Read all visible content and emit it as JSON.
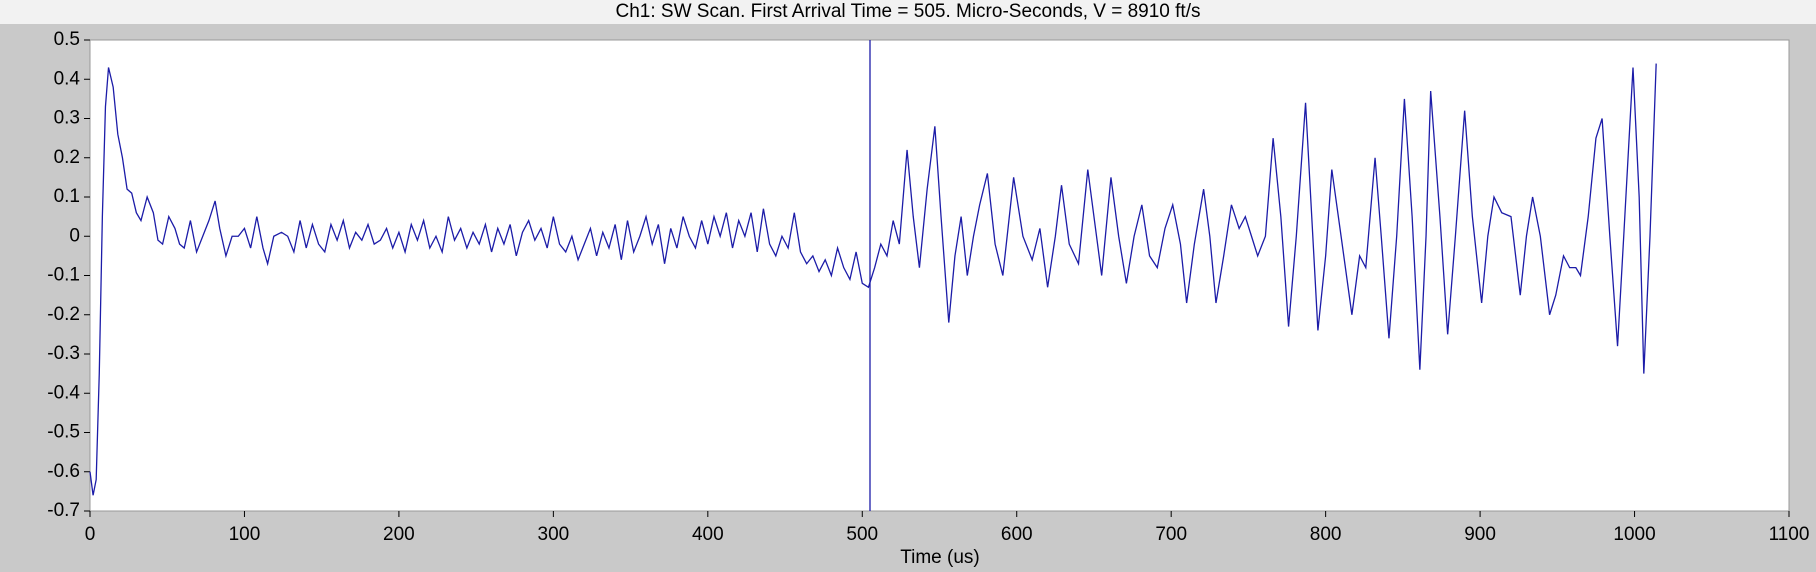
{
  "chart_data": {
    "type": "line",
    "title": "Ch1: SW Scan. First Arrival Time = 505. Micro-Seconds, V = 8910 ft/s",
    "xlabel": "Time (us)",
    "color": "#1c1ca8",
    "marker_color": "#1c1ca8",
    "vline": 505,
    "xlim": [
      0,
      1100
    ],
    "xticks": [
      0,
      100,
      200,
      300,
      400,
      500,
      600,
      700,
      800,
      900,
      1000,
      1100
    ],
    "ylim": [
      -0.7,
      0.5
    ],
    "yticks": [
      0.5,
      0.4,
      0.3,
      0.2,
      0.1,
      0,
      -0.1,
      -0.2,
      -0.3,
      -0.4,
      -0.5,
      -0.6,
      -0.7
    ],
    "x": [
      0,
      2,
      4,
      6,
      8,
      10,
      12,
      15,
      18,
      21,
      24,
      27,
      30,
      33,
      37,
      41,
      44,
      47,
      51,
      55,
      58,
      61,
      65,
      69,
      73,
      77,
      81,
      84,
      88,
      92,
      96,
      100,
      104,
      108,
      112,
      115,
      119,
      124,
      128,
      132,
      136,
      140,
      144,
      148,
      152,
      156,
      160,
      164,
      168,
      172,
      176,
      180,
      184,
      188,
      192,
      196,
      200,
      204,
      208,
      212,
      216,
      220,
      224,
      228,
      232,
      236,
      240,
      244,
      248,
      252,
      256,
      260,
      264,
      268,
      272,
      276,
      280,
      284,
      288,
      292,
      296,
      300,
      304,
      308,
      312,
      316,
      320,
      324,
      328,
      332,
      336,
      340,
      344,
      348,
      352,
      356,
      360,
      364,
      368,
      372,
      376,
      380,
      384,
      388,
      392,
      396,
      400,
      404,
      408,
      412,
      416,
      420,
      424,
      428,
      432,
      436,
      440,
      444,
      448,
      452,
      456,
      460,
      464,
      468,
      472,
      476,
      480,
      484,
      488,
      492,
      496,
      500,
      504,
      508,
      512,
      516,
      520,
      524,
      529,
      533,
      537,
      542,
      547,
      551,
      556,
      560,
      564,
      568,
      572,
      576,
      581,
      586,
      591,
      598,
      604,
      610,
      615,
      620,
      625,
      629,
      634,
      640,
      646,
      651,
      655,
      661,
      666,
      671,
      676,
      681,
      686,
      691,
      696,
      701,
      706,
      710,
      715,
      721,
      725,
      729,
      734,
      739,
      744,
      748,
      752,
      756,
      761,
      766,
      771,
      776,
      781,
      787,
      791,
      795,
      800,
      804,
      810,
      817,
      822,
      826,
      832,
      836,
      841,
      846,
      851,
      856,
      861,
      865,
      868,
      874,
      879,
      884,
      890,
      895,
      901,
      905,
      909,
      914,
      920,
      923,
      926,
      930,
      934,
      939,
      945,
      949,
      954,
      958,
      962,
      965,
      970,
      975,
      979,
      984,
      989,
      993,
      999,
      1003,
      1006,
      1010,
      1014
    ],
    "values": [
      -0.6,
      -0.66,
      -0.62,
      -0.35,
      0.05,
      0.33,
      0.43,
      0.38,
      0.26,
      0.2,
      0.12,
      0.11,
      0.06,
      0.04,
      0.1,
      0.06,
      -0.01,
      -0.02,
      0.05,
      0.02,
      -0.02,
      -0.03,
      0.04,
      -0.04,
      0.0,
      0.04,
      0.09,
      0.02,
      -0.05,
      0.0,
      0.0,
      0.02,
      -0.03,
      0.05,
      -0.03,
      -0.07,
      0.0,
      0.01,
      0.0,
      -0.04,
      0.04,
      -0.03,
      0.03,
      -0.02,
      -0.04,
      0.03,
      -0.01,
      0.04,
      -0.03,
      0.01,
      -0.01,
      0.03,
      -0.02,
      -0.01,
      0.02,
      -0.03,
      0.01,
      -0.04,
      0.03,
      -0.01,
      0.04,
      -0.03,
      0.0,
      -0.04,
      0.05,
      -0.01,
      0.02,
      -0.03,
      0.01,
      -0.02,
      0.03,
      -0.04,
      0.02,
      -0.02,
      0.03,
      -0.05,
      0.01,
      0.04,
      -0.01,
      0.02,
      -0.03,
      0.05,
      -0.02,
      -0.04,
      0.0,
      -0.06,
      -0.02,
      0.02,
      -0.05,
      0.01,
      -0.03,
      0.03,
      -0.06,
      0.04,
      -0.04,
      0.0,
      0.05,
      -0.02,
      0.03,
      -0.07,
      0.02,
      -0.03,
      0.05,
      0.0,
      -0.03,
      0.04,
      -0.02,
      0.05,
      0.0,
      0.06,
      -0.03,
      0.04,
      0.0,
      0.06,
      -0.04,
      0.07,
      -0.02,
      -0.05,
      0.0,
      -0.03,
      0.06,
      -0.04,
      -0.07,
      -0.05,
      -0.09,
      -0.06,
      -0.1,
      -0.03,
      -0.08,
      -0.11,
      -0.04,
      -0.12,
      -0.13,
      -0.08,
      -0.02,
      -0.05,
      0.04,
      -0.02,
      0.22,
      0.05,
      -0.08,
      0.12,
      0.28,
      0.05,
      -0.22,
      -0.05,
      0.05,
      -0.1,
      0.0,
      0.08,
      0.16,
      -0.02,
      -0.1,
      0.15,
      0.0,
      -0.06,
      0.02,
      -0.13,
      0.0,
      0.13,
      -0.02,
      -0.07,
      0.17,
      0.02,
      -0.1,
      0.15,
      0.0,
      -0.12,
      0.0,
      0.08,
      -0.05,
      -0.08,
      0.02,
      0.08,
      -0.02,
      -0.17,
      -0.02,
      0.12,
      0.0,
      -0.17,
      -0.05,
      0.08,
      0.02,
      0.05,
      0.0,
      -0.05,
      0.0,
      0.25,
      0.05,
      -0.23,
      0.0,
      0.34,
      0.05,
      -0.24,
      -0.05,
      0.17,
      0.0,
      -0.2,
      -0.05,
      -0.08,
      0.2,
      0.0,
      -0.26,
      0.0,
      0.35,
      0.05,
      -0.34,
      0.0,
      0.37,
      0.05,
      -0.25,
      0.0,
      0.32,
      0.05,
      -0.17,
      0.0,
      0.1,
      0.06,
      0.05,
      -0.05,
      -0.15,
      0.0,
      0.1,
      0.0,
      -0.2,
      -0.15,
      -0.05,
      -0.08,
      -0.08,
      -0.1,
      0.05,
      0.25,
      0.3,
      0.0,
      -0.28,
      0.0,
      0.43,
      0.1,
      -0.35,
      0.0,
      0.44
    ]
  }
}
